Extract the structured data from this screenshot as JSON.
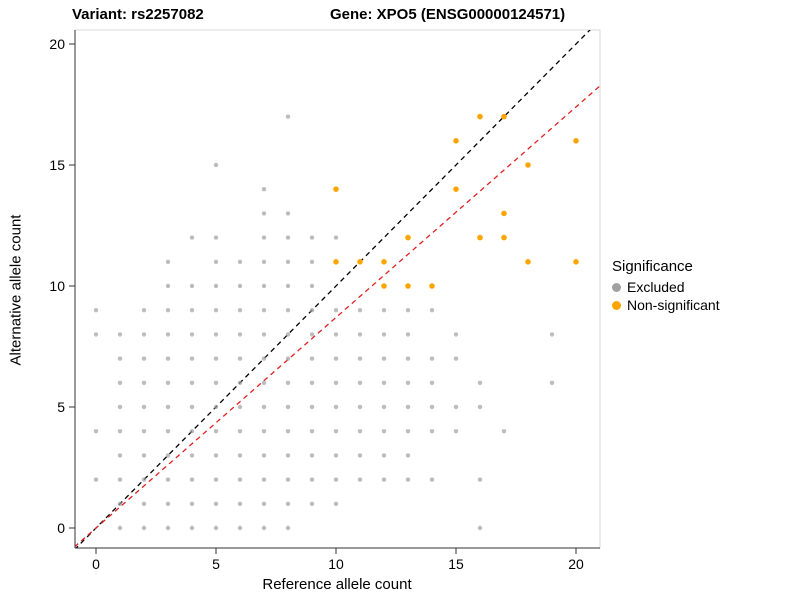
{
  "titles": {
    "left": "Variant: rs2257082",
    "right": "Gene: XPO5 (ENSG00000124571)"
  },
  "axes": {
    "x_label": "Reference allele count",
    "y_label": "Alternative allele count",
    "x_ticks": [
      0,
      5,
      10,
      15,
      20
    ],
    "y_ticks": [
      0,
      5,
      10,
      15,
      20
    ]
  },
  "legend": {
    "title": "Significance",
    "items": [
      {
        "label": "Excluded",
        "color": "#A0A0A0"
      },
      {
        "label": "Non-significant",
        "color": "#FFA500"
      }
    ]
  },
  "chart_data": {
    "type": "scatter",
    "title": "Variant: rs2257082 — Gene: XPO5 (ENSG00000124571)",
    "xlabel": "Reference allele count",
    "ylabel": "Alternative allele count",
    "xlim": [
      -0.9,
      21
    ],
    "ylim": [
      -0.9,
      20.6
    ],
    "grid": false,
    "legend_position": "right",
    "series": [
      {
        "name": "Excluded",
        "color": "#A0A0A0",
        "opacity": 0.7,
        "radius": 2.2,
        "points": [
          [
            1,
            0
          ],
          [
            2,
            0
          ],
          [
            3,
            0
          ],
          [
            4,
            0
          ],
          [
            5,
            0
          ],
          [
            6,
            0
          ],
          [
            7,
            0
          ],
          [
            8,
            0
          ],
          [
            16,
            0
          ],
          [
            1,
            1
          ],
          [
            2,
            1
          ],
          [
            3,
            1
          ],
          [
            4,
            1
          ],
          [
            5,
            1
          ],
          [
            6,
            1
          ],
          [
            7,
            1
          ],
          [
            8,
            1
          ],
          [
            9,
            1
          ],
          [
            10,
            1
          ],
          [
            0,
            2
          ],
          [
            1,
            2
          ],
          [
            2,
            2
          ],
          [
            3,
            2
          ],
          [
            4,
            2
          ],
          [
            5,
            2
          ],
          [
            6,
            2
          ],
          [
            7,
            2
          ],
          [
            8,
            2
          ],
          [
            9,
            2
          ],
          [
            10,
            2
          ],
          [
            11,
            2
          ],
          [
            12,
            2
          ],
          [
            13,
            2
          ],
          [
            14,
            2
          ],
          [
            16,
            2
          ],
          [
            1,
            3
          ],
          [
            2,
            3
          ],
          [
            3,
            3
          ],
          [
            4,
            3
          ],
          [
            5,
            3
          ],
          [
            6,
            3
          ],
          [
            7,
            3
          ],
          [
            8,
            3
          ],
          [
            9,
            3
          ],
          [
            10,
            3
          ],
          [
            11,
            3
          ],
          [
            12,
            3
          ],
          [
            13,
            3
          ],
          [
            0,
            4
          ],
          [
            1,
            4
          ],
          [
            2,
            4
          ],
          [
            3,
            4
          ],
          [
            4,
            4
          ],
          [
            5,
            4
          ],
          [
            6,
            4
          ],
          [
            7,
            4
          ],
          [
            8,
            4
          ],
          [
            9,
            4
          ],
          [
            10,
            4
          ],
          [
            11,
            4
          ],
          [
            12,
            4
          ],
          [
            13,
            4
          ],
          [
            14,
            4
          ],
          [
            15,
            4
          ],
          [
            17,
            4
          ],
          [
            1,
            5
          ],
          [
            2,
            5
          ],
          [
            3,
            5
          ],
          [
            4,
            5
          ],
          [
            5,
            5
          ],
          [
            6,
            5
          ],
          [
            7,
            5
          ],
          [
            8,
            5
          ],
          [
            9,
            5
          ],
          [
            10,
            5
          ],
          [
            11,
            5
          ],
          [
            12,
            5
          ],
          [
            13,
            5
          ],
          [
            14,
            5
          ],
          [
            15,
            5
          ],
          [
            16,
            5
          ],
          [
            1,
            6
          ],
          [
            2,
            6
          ],
          [
            3,
            6
          ],
          [
            4,
            6
          ],
          [
            5,
            6
          ],
          [
            6,
            6
          ],
          [
            7,
            6
          ],
          [
            8,
            6
          ],
          [
            9,
            6
          ],
          [
            10,
            6
          ],
          [
            11,
            6
          ],
          [
            12,
            6
          ],
          [
            13,
            6
          ],
          [
            14,
            6
          ],
          [
            16,
            6
          ],
          [
            19,
            6
          ],
          [
            1,
            7
          ],
          [
            2,
            7
          ],
          [
            3,
            7
          ],
          [
            4,
            7
          ],
          [
            5,
            7
          ],
          [
            6,
            7
          ],
          [
            7,
            7
          ],
          [
            8,
            7
          ],
          [
            9,
            7
          ],
          [
            10,
            7
          ],
          [
            11,
            7
          ],
          [
            12,
            7
          ],
          [
            13,
            7
          ],
          [
            14,
            7
          ],
          [
            15,
            7
          ],
          [
            0,
            8
          ],
          [
            1,
            8
          ],
          [
            2,
            8
          ],
          [
            3,
            8
          ],
          [
            4,
            8
          ],
          [
            5,
            8
          ],
          [
            6,
            8
          ],
          [
            7,
            8
          ],
          [
            8,
            8
          ],
          [
            9,
            8
          ],
          [
            10,
            8
          ],
          [
            11,
            8
          ],
          [
            12,
            8
          ],
          [
            13,
            8
          ],
          [
            15,
            8
          ],
          [
            19,
            8
          ],
          [
            0,
            9
          ],
          [
            2,
            9
          ],
          [
            3,
            9
          ],
          [
            4,
            9
          ],
          [
            5,
            9
          ],
          [
            6,
            9
          ],
          [
            7,
            9
          ],
          [
            8,
            9
          ],
          [
            9,
            9
          ],
          [
            10,
            9
          ],
          [
            11,
            9
          ],
          [
            12,
            9
          ],
          [
            13,
            9
          ],
          [
            14,
            9
          ],
          [
            3,
            10
          ],
          [
            4,
            10
          ],
          [
            5,
            10
          ],
          [
            6,
            10
          ],
          [
            7,
            10
          ],
          [
            8,
            10
          ],
          [
            9,
            10
          ],
          [
            3,
            11
          ],
          [
            5,
            11
          ],
          [
            6,
            11
          ],
          [
            7,
            11
          ],
          [
            8,
            11
          ],
          [
            9,
            11
          ],
          [
            4,
            12
          ],
          [
            5,
            12
          ],
          [
            7,
            12
          ],
          [
            8,
            12
          ],
          [
            9,
            12
          ],
          [
            10,
            12
          ],
          [
            7,
            13
          ],
          [
            8,
            13
          ],
          [
            7,
            14
          ],
          [
            5,
            15
          ],
          [
            8,
            17
          ]
        ]
      },
      {
        "name": "Non-significant",
        "color": "#FFA500",
        "opacity": 1,
        "radius": 2.8,
        "points": [
          [
            10,
            14
          ],
          [
            15,
            16
          ],
          [
            16,
            17
          ],
          [
            17,
            17
          ],
          [
            20,
            16
          ],
          [
            18,
            15
          ],
          [
            15,
            14
          ],
          [
            17,
            13
          ],
          [
            13,
            12
          ],
          [
            16,
            12
          ],
          [
            17,
            12
          ],
          [
            10,
            11
          ],
          [
            11,
            11
          ],
          [
            12,
            11
          ],
          [
            18,
            11
          ],
          [
            20,
            11
          ],
          [
            12,
            10
          ],
          [
            13,
            10
          ],
          [
            14,
            10
          ]
        ]
      }
    ],
    "lines": [
      {
        "name": "identity",
        "slope": 1,
        "intercept": 0,
        "color": "#000000",
        "dash": "5,4"
      },
      {
        "name": "fit",
        "slope": 0.87,
        "intercept": 0,
        "color": "#E02020",
        "dash": "5,4"
      }
    ]
  }
}
